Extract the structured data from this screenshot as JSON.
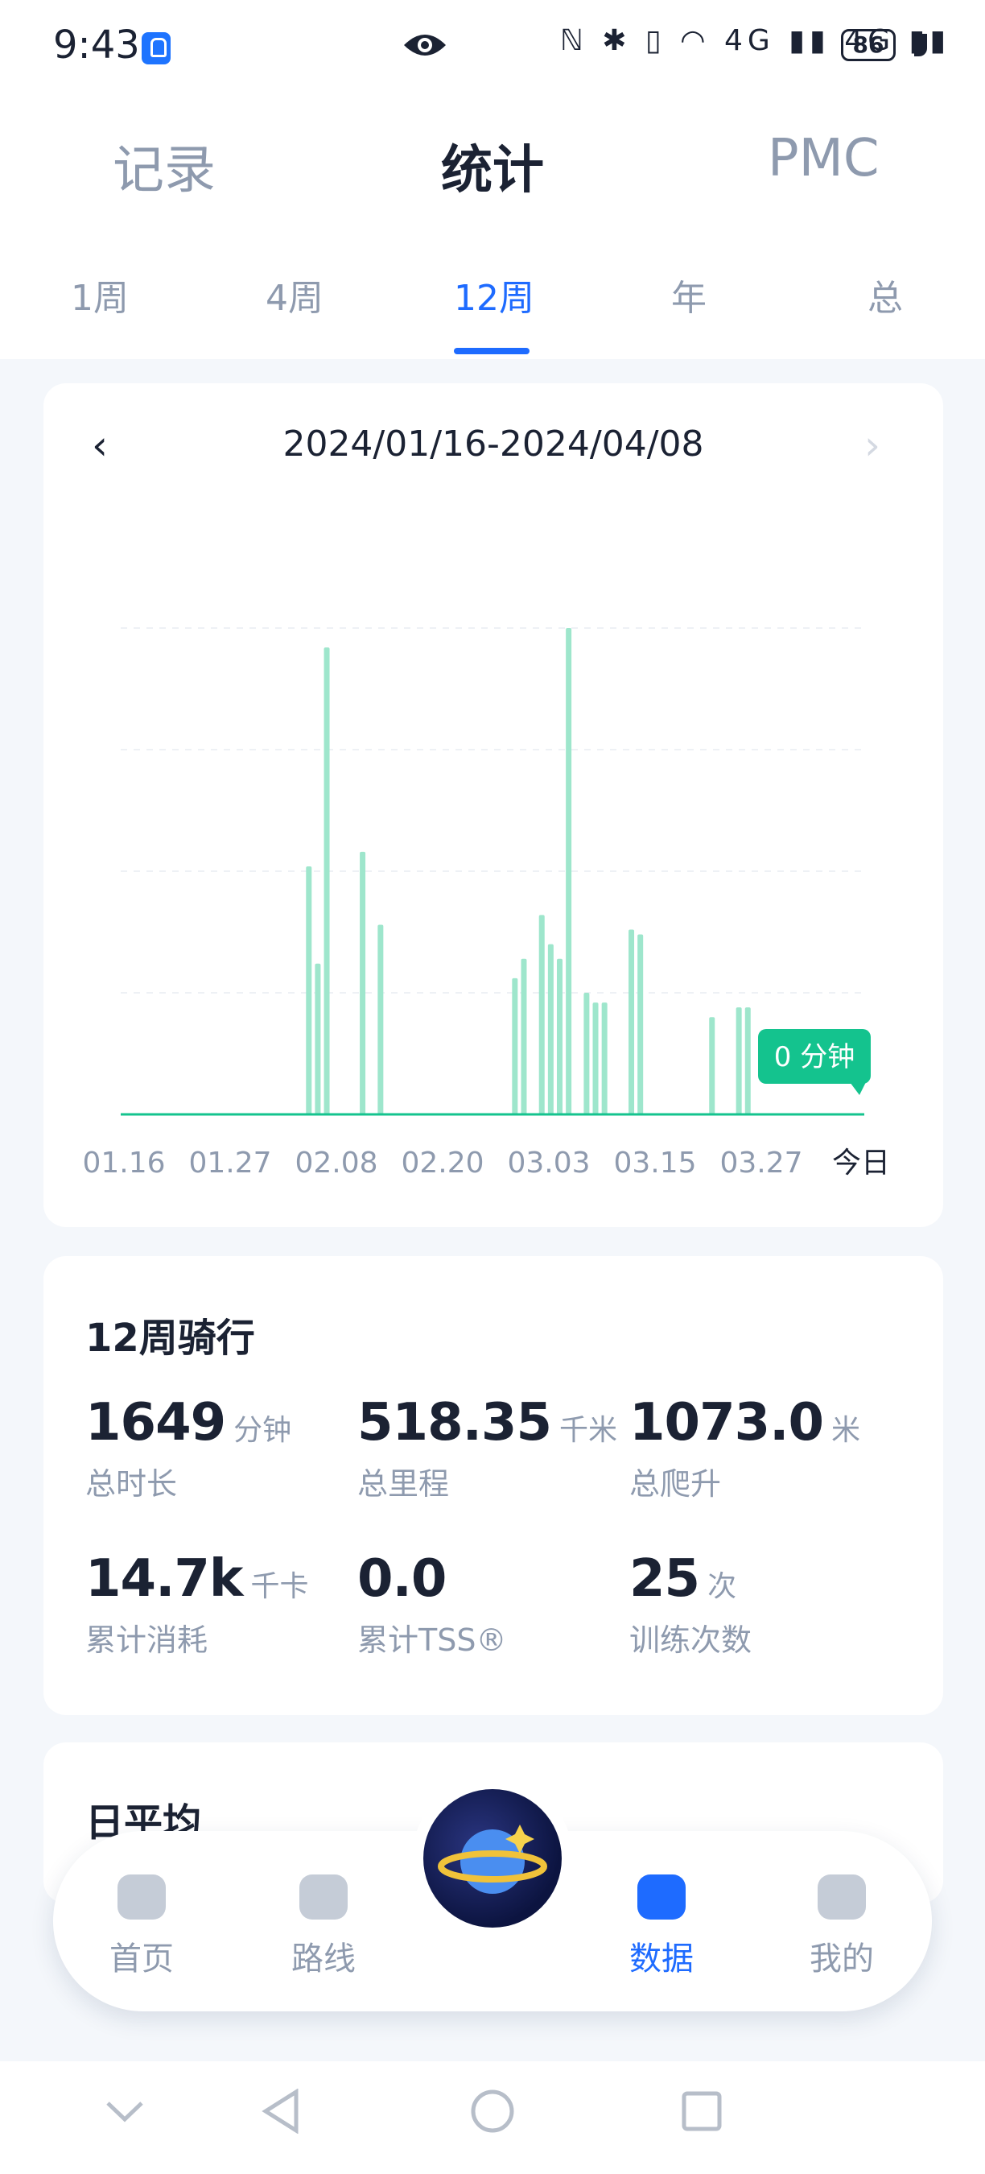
{
  "status_bar": {
    "time": "9:43",
    "icons": "ℕ ✱ ▯ ◠ 4G ▮▮ 4G ▮▮",
    "battery": "86"
  },
  "main_tabs": [
    {
      "label": "记录"
    },
    {
      "label": "统计"
    },
    {
      "label": "PMC"
    }
  ],
  "period_tabs": [
    {
      "label": "1周"
    },
    {
      "label": "4周"
    },
    {
      "label": "12周"
    },
    {
      "label": "年"
    },
    {
      "label": "总"
    }
  ],
  "chart_card": {
    "date_range": "2024/01/16-2024/04/08",
    "prev_icon": "‹",
    "next_icon": "›"
  },
  "chart_data": {
    "type": "bar",
    "x_tick_labels": [
      "01.16",
      "01.27",
      "02.08",
      "02.20",
      "03.03",
      "03.15",
      "03.27",
      "今日"
    ],
    "bars": [
      {
        "date": "2024-02-06",
        "value": 51
      },
      {
        "date": "2024-02-07",
        "value": 31
      },
      {
        "date": "2024-02-08",
        "value": 96
      },
      {
        "date": "2024-02-12",
        "value": 54
      },
      {
        "date": "2024-02-14",
        "value": 39
      },
      {
        "date": "2024-02-29",
        "value": 28
      },
      {
        "date": "2024-03-01",
        "value": 32
      },
      {
        "date": "2024-03-03",
        "value": 41
      },
      {
        "date": "2024-03-04",
        "value": 35
      },
      {
        "date": "2024-03-05",
        "value": 32
      },
      {
        "date": "2024-03-06",
        "value": 100
      },
      {
        "date": "2024-03-08",
        "value": 25
      },
      {
        "date": "2024-03-09",
        "value": 23
      },
      {
        "date": "2024-03-10",
        "value": 23
      },
      {
        "date": "2024-03-13",
        "value": 38
      },
      {
        "date": "2024-03-14",
        "value": 37
      },
      {
        "date": "2024-03-22",
        "value": 20
      },
      {
        "date": "2024-03-25",
        "value": 22
      },
      {
        "date": "2024-03-26",
        "value": 22
      }
    ],
    "ylim": [
      0,
      100
    ],
    "grid": true,
    "bar_color": "#9ee6cc",
    "tooltip": "0 分钟",
    "tooltip_color": "#14c38e"
  },
  "stats": {
    "title": "12周骑行",
    "items": [
      {
        "value": "1649",
        "unit": "分钟",
        "label": "总时长"
      },
      {
        "value": "518.35",
        "unit": "千米",
        "label": "总里程"
      },
      {
        "value": "1073.0",
        "unit": "米",
        "label": "总爬升"
      },
      {
        "value": "14.7k",
        "unit": "千卡",
        "label": "累计消耗"
      },
      {
        "value": "0.0",
        "unit": "",
        "label": "累计TSS®"
      },
      {
        "value": "25",
        "unit": "次",
        "label": "训练次数"
      }
    ]
  },
  "daily_avg": {
    "title": "日平均"
  },
  "bottom_nav": [
    {
      "label": "首页",
      "icon": "home-icon"
    },
    {
      "label": "路线",
      "icon": "route-icon"
    },
    {
      "label": "数据",
      "icon": "data-icon"
    },
    {
      "label": "我的",
      "icon": "profile-icon"
    }
  ],
  "colors": {
    "accent": "#1e6bff",
    "chart_bar": "#9ee6cc",
    "chart_highlight": "#14c38e"
  }
}
